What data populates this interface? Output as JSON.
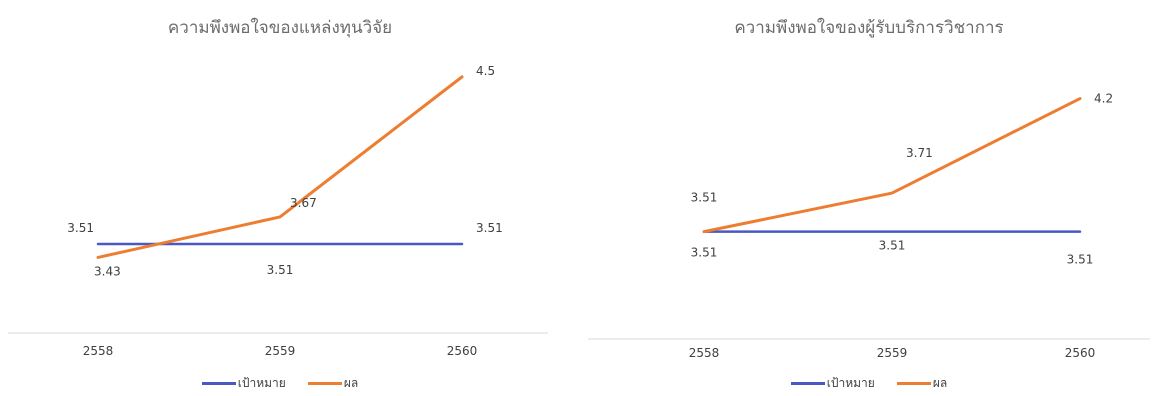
{
  "chart_data": [
    {
      "type": "line",
      "title": "ความพึงพอใจของแหล่งทุนวิจัย",
      "categories": [
        "2558",
        "2559",
        "2560"
      ],
      "series": [
        {
          "name": "เป้าหมาย",
          "color": "#4a58c4",
          "values": [
            3.51,
            3.51,
            3.51
          ],
          "labels": [
            "3.51",
            "3.51",
            "3.51"
          ]
        },
        {
          "name": "ผล",
          "color": "#ed7d31",
          "values": [
            3.43,
            3.67,
            4.5
          ],
          "labels": [
            "3.43",
            "3.67",
            "4.5"
          ]
        }
      ],
      "ylim": [
        3.0,
        4.6
      ],
      "grid": false,
      "legend": "bottom"
    },
    {
      "type": "line",
      "title": "ความพึงพอใจของผู้รับบริการวิชาการ",
      "categories": [
        "2558",
        "2559",
        "2560"
      ],
      "series": [
        {
          "name": "เป้าหมาย",
          "color": "#4a58c4",
          "values": [
            3.51,
            3.51,
            3.51
          ],
          "labels": [
            "3.51",
            "3.51",
            "3.51"
          ]
        },
        {
          "name": "ผล",
          "color": "#ed7d31",
          "values": [
            3.51,
            3.71,
            4.2
          ],
          "labels": [
            "3.51",
            "3.71",
            "4.2"
          ]
        }
      ],
      "ylim": [
        3.0,
        4.4
      ],
      "grid": false,
      "legend": "bottom"
    }
  ]
}
